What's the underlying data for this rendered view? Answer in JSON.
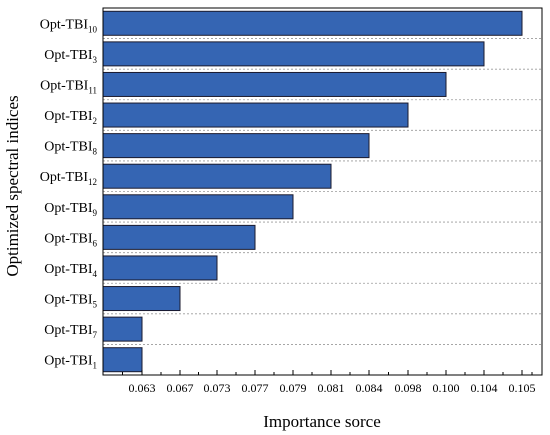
{
  "chart_data": {
    "type": "bar",
    "orientation": "horizontal",
    "categories": [
      {
        "base": "Opt-TBI",
        "sub": "10"
      },
      {
        "base": "Opt-TBI",
        "sub": "3"
      },
      {
        "base": "Opt-TBI",
        "sub": "11"
      },
      {
        "base": "Opt-TBI",
        "sub": "2"
      },
      {
        "base": "Opt-TBI",
        "sub": "8"
      },
      {
        "base": "Opt-TBI",
        "sub": "12"
      },
      {
        "base": "Opt-TBI",
        "sub": "9"
      },
      {
        "base": "Opt-TBI",
        "sub": "6"
      },
      {
        "base": "Opt-TBI",
        "sub": "4"
      },
      {
        "base": "Opt-TBI",
        "sub": "5"
      },
      {
        "base": "Opt-TBI",
        "sub": "7"
      },
      {
        "base": "Opt-TBI",
        "sub": "1"
      }
    ],
    "values": [
      0.105,
      0.104,
      0.1,
      0.098,
      0.084,
      0.081,
      0.079,
      0.077,
      0.073,
      0.067,
      0.063,
      0.063
    ],
    "x_tick_labels": [
      "0.063",
      "0.067",
      "0.073",
      "0.077",
      "0.079",
      "0.081",
      "0.084",
      "0.098",
      "0.100",
      "0.104",
      "0.105"
    ],
    "xlabel": "Importance sorce",
    "ylabel": "Optimized spectral indices",
    "grid": "horizontal dashed",
    "bar_color": "#3565b3",
    "bar_edge_color": "#1a1a2e"
  }
}
